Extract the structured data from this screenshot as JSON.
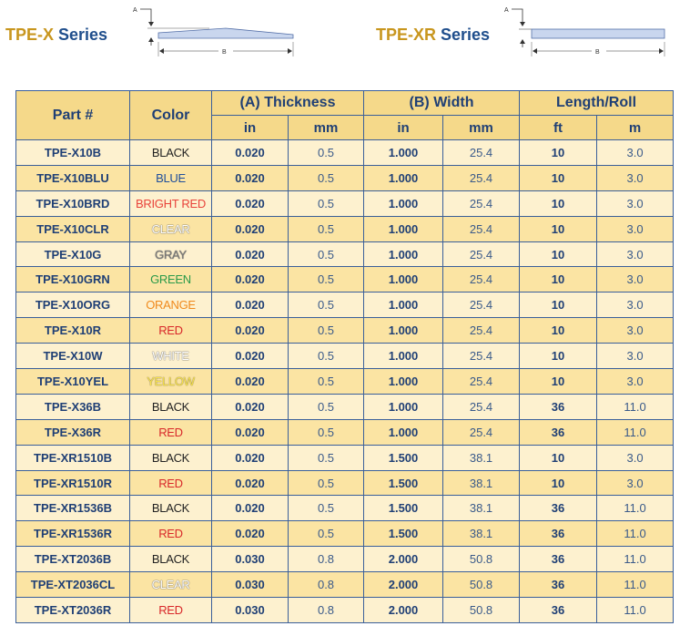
{
  "series": [
    {
      "prefix": "TPE-X",
      "suffix": " Series"
    },
    {
      "prefix": "TPE-XR",
      "suffix": " Series"
    }
  ],
  "diagram": {
    "label_a": "A",
    "label_b": "B"
  },
  "table": {
    "headers": {
      "part": "Part #",
      "color": "Color",
      "thickness": "(A) Thickness",
      "width": "(B) Width",
      "length": "Length/Roll",
      "in": "in",
      "mm": "mm",
      "ft": "ft",
      "m": "m"
    },
    "rows": [
      {
        "part": "TPE-X10B",
        "color": "BLACK",
        "color_hex": "#222222",
        "t_in": "0.020",
        "t_mm": "0.5",
        "w_in": "1.000",
        "w_mm": "25.4",
        "ft": "10",
        "m": "3.0"
      },
      {
        "part": "TPE-X10BLU",
        "color": "BLUE",
        "color_hex": "#1f4e9c",
        "t_in": "0.020",
        "t_mm": "0.5",
        "w_in": "1.000",
        "w_mm": "25.4",
        "ft": "10",
        "m": "3.0"
      },
      {
        "part": "TPE-X10BRD",
        "color": "BRIGHT RED",
        "color_hex": "#e8423a",
        "t_in": "0.020",
        "t_mm": "0.5",
        "w_in": "1.000",
        "w_mm": "25.4",
        "ft": "10",
        "m": "3.0"
      },
      {
        "part": "TPE-X10CLR",
        "color": "CLEAR",
        "color_hex": "#ffffff",
        "t_in": "0.020",
        "t_mm": "0.5",
        "w_in": "1.000",
        "w_mm": "25.4",
        "ft": "10",
        "m": "3.0"
      },
      {
        "part": "TPE-X10G",
        "color": "GRAY",
        "color_hex": "#7a7a7a",
        "t_in": "0.020",
        "t_mm": "0.5",
        "w_in": "1.000",
        "w_mm": "25.4",
        "ft": "10",
        "m": "3.0"
      },
      {
        "part": "TPE-X10GRN",
        "color": "GREEN",
        "color_hex": "#2a9a4a",
        "t_in": "0.020",
        "t_mm": "0.5",
        "w_in": "1.000",
        "w_mm": "25.4",
        "ft": "10",
        "m": "3.0"
      },
      {
        "part": "TPE-X10ORG",
        "color": "ORANGE",
        "color_hex": "#f08a1c",
        "t_in": "0.020",
        "t_mm": "0.5",
        "w_in": "1.000",
        "w_mm": "25.4",
        "ft": "10",
        "m": "3.0"
      },
      {
        "part": "TPE-X10R",
        "color": "RED",
        "color_hex": "#d8282a",
        "t_in": "0.020",
        "t_mm": "0.5",
        "w_in": "1.000",
        "w_mm": "25.4",
        "ft": "10",
        "m": "3.0"
      },
      {
        "part": "TPE-X10W",
        "color": "WHITE",
        "color_hex": "#ffffff",
        "t_in": "0.020",
        "t_mm": "0.5",
        "w_in": "1.000",
        "w_mm": "25.4",
        "ft": "10",
        "m": "3.0"
      },
      {
        "part": "TPE-X10YEL",
        "color": "YELLOW",
        "color_hex": "#f6e04a",
        "t_in": "0.020",
        "t_mm": "0.5",
        "w_in": "1.000",
        "w_mm": "25.4",
        "ft": "10",
        "m": "3.0"
      },
      {
        "part": "TPE-X36B",
        "color": "BLACK",
        "color_hex": "#222222",
        "t_in": "0.020",
        "t_mm": "0.5",
        "w_in": "1.000",
        "w_mm": "25.4",
        "ft": "36",
        "m": "11.0"
      },
      {
        "part": "TPE-X36R",
        "color": "RED",
        "color_hex": "#d8282a",
        "t_in": "0.020",
        "t_mm": "0.5",
        "w_in": "1.000",
        "w_mm": "25.4",
        "ft": "36",
        "m": "11.0"
      },
      {
        "part": "TPE-XR1510B",
        "color": "BLACK",
        "color_hex": "#222222",
        "t_in": "0.020",
        "t_mm": "0.5",
        "w_in": "1.500",
        "w_mm": "38.1",
        "ft": "10",
        "m": "3.0"
      },
      {
        "part": "TPE-XR1510R",
        "color": "RED",
        "color_hex": "#d8282a",
        "t_in": "0.020",
        "t_mm": "0.5",
        "w_in": "1.500",
        "w_mm": "38.1",
        "ft": "10",
        "m": "3.0"
      },
      {
        "part": "TPE-XR1536B",
        "color": "BLACK",
        "color_hex": "#222222",
        "t_in": "0.020",
        "t_mm": "0.5",
        "w_in": "1.500",
        "w_mm": "38.1",
        "ft": "36",
        "m": "11.0"
      },
      {
        "part": "TPE-XR1536R",
        "color": "RED",
        "color_hex": "#d8282a",
        "t_in": "0.020",
        "t_mm": "0.5",
        "w_in": "1.500",
        "w_mm": "38.1",
        "ft": "36",
        "m": "11.0"
      },
      {
        "part": "TPE-XT2036B",
        "color": "BLACK",
        "color_hex": "#222222",
        "t_in": "0.030",
        "t_mm": "0.8",
        "w_in": "2.000",
        "w_mm": "50.8",
        "ft": "36",
        "m": "11.0"
      },
      {
        "part": "TPE-XT2036CL",
        "color": "CLEAR",
        "color_hex": "#ffffff",
        "t_in": "0.030",
        "t_mm": "0.8",
        "w_in": "2.000",
        "w_mm": "50.8",
        "ft": "36",
        "m": "11.0"
      },
      {
        "part": "TPE-XT2036R",
        "color": "RED",
        "color_hex": "#d8282a",
        "t_in": "0.030",
        "t_mm": "0.8",
        "w_in": "2.000",
        "w_mm": "50.8",
        "ft": "36",
        "m": "11.0"
      }
    ]
  }
}
